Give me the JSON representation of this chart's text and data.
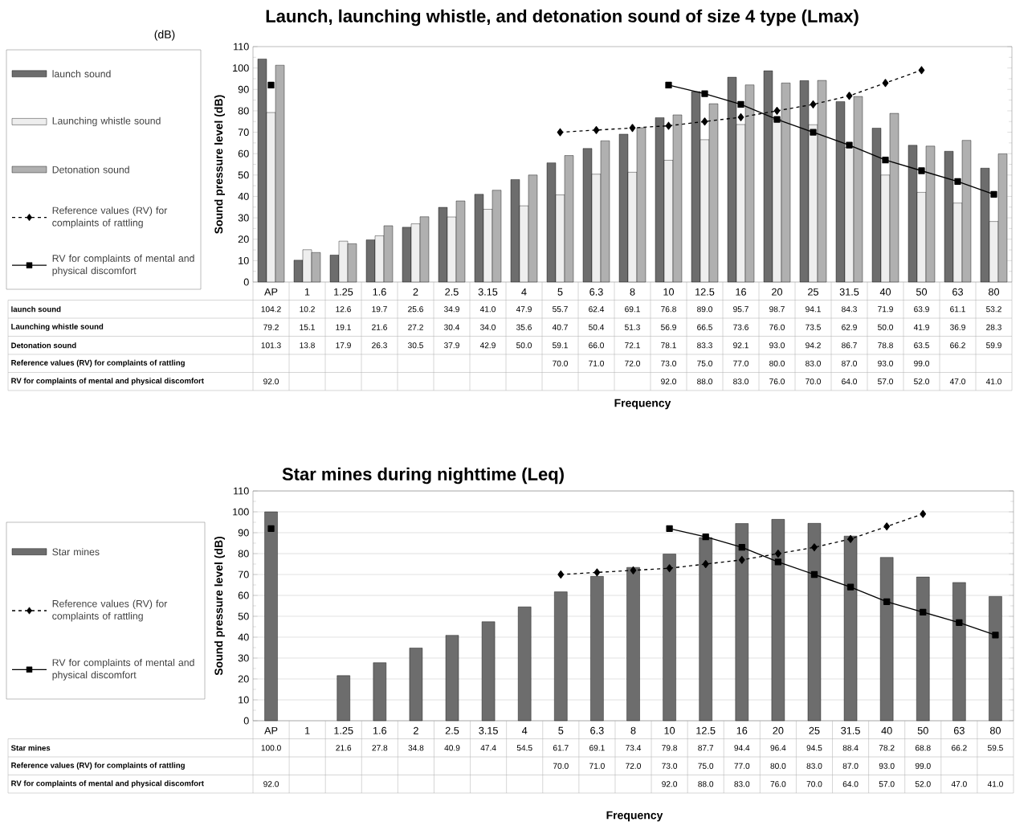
{
  "chart_data": [
    {
      "type": "bar",
      "title": "Launch, launching whistle, and detonation sound of size 4 type (Lmax)",
      "xlabel": "Frequency",
      "ylabel": "Sound pressure level (dB)",
      "annotations": [
        "(dB)"
      ],
      "categories": [
        "AP",
        "1",
        "1.25",
        "1.6",
        "2",
        "2.5",
        "3.15",
        "4",
        "5",
        "6.3",
        "8",
        "10",
        "12.5",
        "16",
        "20",
        "25",
        "31.5",
        "40",
        "50",
        "63",
        "80"
      ],
      "ylim": [
        0,
        110
      ],
      "yticks": [
        0,
        10,
        20,
        30,
        40,
        50,
        60,
        70,
        80,
        90,
        100,
        110
      ],
      "legend": "left",
      "series": [
        {
          "name": "launch sound",
          "color": "#6d6d6d",
          "values": [
            104.2,
            10.2,
            12.6,
            19.7,
            25.6,
            34.9,
            41.0,
            47.9,
            55.7,
            62.4,
            69.1,
            76.8,
            89.0,
            95.7,
            98.7,
            94.1,
            84.3,
            71.9,
            63.9,
            61.1,
            53.2
          ],
          "value_labels": [
            "104.2",
            "10.2",
            "12.6",
            "19.7",
            "25.6",
            "34.9",
            "41.0",
            "47.9",
            "55.7",
            "62.4",
            "69.1",
            "76.8",
            "89.0",
            "95.7",
            "98.7",
            "94.1",
            "84.3",
            "71.9",
            "63.9",
            "61.1",
            "53.2"
          ]
        },
        {
          "name": "Launching whistle sound",
          "color": "#eeeeee",
          "values": [
            79.2,
            15.1,
            19.1,
            21.6,
            27.2,
            30.4,
            34.0,
            35.6,
            40.7,
            50.4,
            51.3,
            56.9,
            66.5,
            73.6,
            76.0,
            73.5,
            62.9,
            50.0,
            41.9,
            36.9,
            28.3
          ],
          "value_labels": [
            "79.2",
            "15.1",
            "19.1",
            "21.6",
            "27.2",
            "30.4",
            "34.0",
            "35.6",
            "40.7",
            "50.4",
            "51.3",
            "56.9",
            "66.5",
            "73.6",
            "76.0",
            "73.5",
            "62.9",
            "50.0",
            "41.9",
            "36.9",
            "28.3"
          ]
        },
        {
          "name": "Detonation sound",
          "color": "#b0b0b0",
          "values": [
            101.3,
            13.8,
            17.9,
            26.3,
            30.5,
            37.9,
            42.9,
            50.0,
            59.1,
            66.0,
            72.1,
            78.1,
            83.3,
            92.1,
            93.0,
            94.2,
            86.7,
            78.8,
            63.5,
            66.2,
            59.9
          ],
          "value_labels": [
            "101.3",
            "13.8",
            "17.9",
            "26.3",
            "30.5",
            "37.9",
            "42.9",
            "50.0",
            "59.1",
            "66.0",
            "72.1",
            "78.1",
            "83.3",
            "92.1",
            "93.0",
            "94.2",
            "86.7",
            "78.8",
            "63.5",
            "66.2",
            "59.9"
          ]
        },
        {
          "name": "Reference values (RV) for complaints of rattling",
          "type": "line",
          "color": "#000000",
          "marker": "diamond",
          "line_style": "dashed",
          "values": [
            null,
            null,
            null,
            null,
            null,
            null,
            null,
            null,
            70.0,
            71.0,
            72.0,
            73.0,
            75.0,
            77.0,
            80.0,
            83.0,
            87.0,
            93.0,
            99.0,
            null,
            null
          ],
          "value_labels": [
            null,
            null,
            null,
            null,
            null,
            null,
            null,
            null,
            "70.0",
            "71.0",
            "72.0",
            "73.0",
            "75.0",
            "77.0",
            "80.0",
            "83.0",
            "87.0",
            "93.0",
            "99.0",
            null,
            null
          ]
        },
        {
          "name": "RV for complaints of mental and physical discomfort",
          "type": "line",
          "color": "#000000",
          "marker": "square",
          "line_style": "solid",
          "values": [
            92.0,
            null,
            null,
            null,
            null,
            null,
            null,
            null,
            null,
            null,
            null,
            92.0,
            88.0,
            83.0,
            76.0,
            70.0,
            64.0,
            57.0,
            52.0,
            47.0,
            41.0
          ],
          "value_labels": [
            "92.0",
            null,
            null,
            null,
            null,
            null,
            null,
            null,
            null,
            null,
            null,
            "92.0",
            "88.0",
            "83.0",
            "76.0",
            "70.0",
            "64.0",
            "57.0",
            "52.0",
            "47.0",
            "41.0"
          ]
        }
      ]
    },
    {
      "type": "bar",
      "title": "Star mines during nighttime (Leq)",
      "xlabel": "Frequency",
      "ylabel": "Sound pressure level (dB)",
      "categories": [
        "AP",
        "1",
        "1.25",
        "1.6",
        "2",
        "2.5",
        "3.15",
        "4",
        "5",
        "6.3",
        "8",
        "10",
        "12.5",
        "16",
        "20",
        "25",
        "31.5",
        "40",
        "50",
        "63",
        "80"
      ],
      "ylim": [
        0,
        110
      ],
      "yticks": [
        0,
        10,
        20,
        30,
        40,
        50,
        60,
        70,
        80,
        90,
        100,
        110
      ],
      "grid": "y",
      "legend": "left",
      "series": [
        {
          "name": "Star mines",
          "color": "#6d6d6d",
          "values": [
            100.0,
            null,
            21.6,
            27.8,
            34.8,
            40.9,
            47.4,
            54.5,
            61.7,
            69.1,
            73.4,
            79.8,
            87.7,
            94.4,
            96.4,
            94.5,
            88.4,
            78.2,
            68.8,
            66.2,
            59.5
          ],
          "value_labels": [
            "100.0",
            null,
            "21.6",
            "27.8",
            "34.8",
            "40.9",
            "47.4",
            "54.5",
            "61.7",
            "69.1",
            "73.4",
            "79.8",
            "87.7",
            "94.4",
            "96.4",
            "94.5",
            "88.4",
            "78.2",
            "68.8",
            "66.2",
            "59.5"
          ]
        },
        {
          "name": "Reference values (RV) for complaints of rattling",
          "type": "line",
          "color": "#000000",
          "marker": "diamond",
          "line_style": "dashed",
          "values": [
            null,
            null,
            null,
            null,
            null,
            null,
            null,
            null,
            70.0,
            71.0,
            72.0,
            73.0,
            75.0,
            77.0,
            80.0,
            83.0,
            87.0,
            93.0,
            99.0,
            null,
            null
          ],
          "value_labels": [
            null,
            null,
            null,
            null,
            null,
            null,
            null,
            null,
            "70.0",
            "71.0",
            "72.0",
            "73.0",
            "75.0",
            "77.0",
            "80.0",
            "83.0",
            "87.0",
            "93.0",
            "99.0",
            null,
            null
          ]
        },
        {
          "name": "RV for complaints of mental and physical discomfort",
          "type": "line",
          "color": "#000000",
          "marker": "square",
          "line_style": "solid",
          "values": [
            92.0,
            null,
            null,
            null,
            null,
            null,
            null,
            null,
            null,
            null,
            null,
            92.0,
            88.0,
            83.0,
            76.0,
            70.0,
            64.0,
            57.0,
            52.0,
            47.0,
            41.0
          ],
          "value_labels": [
            "92.0",
            null,
            null,
            null,
            null,
            null,
            null,
            null,
            null,
            null,
            null,
            "92.0",
            "88.0",
            "83.0",
            "76.0",
            "70.0",
            "64.0",
            "57.0",
            "52.0",
            "47.0",
            "41.0"
          ]
        }
      ]
    }
  ]
}
